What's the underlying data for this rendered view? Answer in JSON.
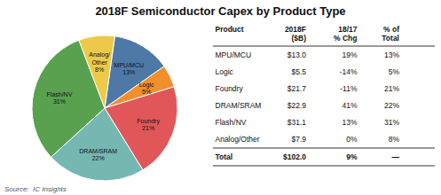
{
  "chart_data": [
    {
      "type": "pie",
      "title": "2018F Semiconductor Capex by Product Type",
      "categories": [
        "MPU/MCU",
        "Logic",
        "Foundry",
        "DRAM/SRAM",
        "Flash/NV",
        "Analog/\nOther"
      ],
      "values": [
        13,
        5,
        21,
        22,
        31,
        8
      ],
      "value_labels": [
        "13%",
        "5%",
        "21%",
        "22%",
        "31%",
        "8%"
      ],
      "data_labels": true,
      "annotations": [
        "Source:  IC Insights"
      ]
    },
    {
      "type": "table",
      "columns": [
        "Product",
        "2018F\n($B)",
        "18/17\n% Chg",
        "% of\nTotal"
      ],
      "rows": [
        [
          "MPU/MCU",
          "$13.0",
          "19%",
          "13%"
        ],
        [
          "Logic",
          "$5.5",
          "-14%",
          "5%"
        ],
        [
          "Foundry",
          "$21.7",
          "-11%",
          "21%"
        ],
        [
          "DRAM/SRAM",
          "$22.9",
          "41%",
          "22%"
        ],
        [
          "Flash/NV",
          "$31.1",
          "13%",
          "31%"
        ],
        [
          "Analog/Other",
          "$7.9",
          "0%",
          "8%"
        ],
        [
          "Total",
          "$102.0",
          "9%",
          "—"
        ]
      ]
    }
  ]
}
